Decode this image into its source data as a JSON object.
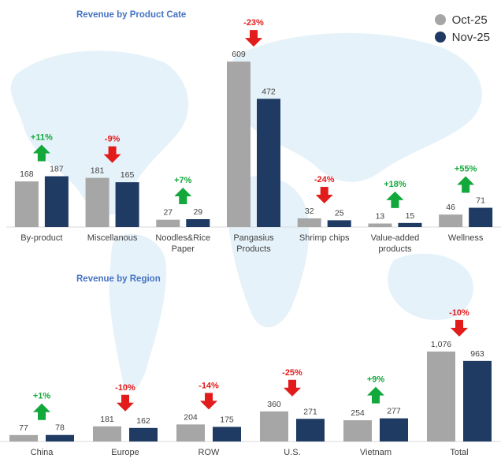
{
  "colors": {
    "oct": "#a6a6a6",
    "nov": "#1f3b63",
    "up": "#12a83b",
    "down": "#e21b1b",
    "title": "#4472c4",
    "map": "#dcedf6"
  },
  "legend": [
    {
      "name": "Oct-25",
      "color": "#a6a6a6"
    },
    {
      "name": "Nov-25",
      "color": "#1f3b63"
    }
  ],
  "chart_data": [
    {
      "type": "bar",
      "title": "Revenue by Product Cate",
      "categories": [
        "By-product",
        "Miscellanous",
        "Noodles&Rice Paper",
        "Pangasius Products",
        "Shrimp chips",
        "Value-added products",
        "Wellness"
      ],
      "series": [
        {
          "name": "Oct-25",
          "values": [
            168,
            181,
            27,
            609,
            32,
            13,
            46
          ]
        },
        {
          "name": "Nov-25",
          "values": [
            187,
            165,
            29,
            472,
            25,
            15,
            71
          ]
        }
      ],
      "changes": [
        "+11%",
        "-9%",
        "+7%",
        "-23%",
        "-24%",
        "+18%",
        "+55%"
      ],
      "value_labels": [
        [
          "168",
          "187"
        ],
        [
          "181",
          "165"
        ],
        [
          "27",
          "29"
        ],
        [
          "609",
          "472"
        ],
        [
          "32",
          "25"
        ],
        [
          "13",
          "15"
        ],
        [
          "46",
          "71"
        ]
      ],
      "ylim": [
        0,
        650
      ]
    },
    {
      "type": "bar",
      "title": "Revenue by Region",
      "categories": [
        "China",
        "Europe",
        "ROW",
        "U.S.",
        "Vietnam",
        "Total"
      ],
      "series": [
        {
          "name": "Oct-25",
          "values": [
            77,
            181,
            204,
            360,
            254,
            1076
          ]
        },
        {
          "name": "Nov-25",
          "values": [
            78,
            162,
            175,
            271,
            277,
            963
          ]
        }
      ],
      "changes": [
        "+1%",
        "-10%",
        "-14%",
        "-25%",
        "+9%",
        "-10%"
      ],
      "value_labels": [
        [
          "77",
          "78"
        ],
        [
          "181",
          "162"
        ],
        [
          "204",
          "175"
        ],
        [
          "360",
          "271"
        ],
        [
          "254",
          "277"
        ],
        [
          "1,076",
          "963"
        ]
      ],
      "ylim": [
        0,
        1150
      ]
    }
  ]
}
